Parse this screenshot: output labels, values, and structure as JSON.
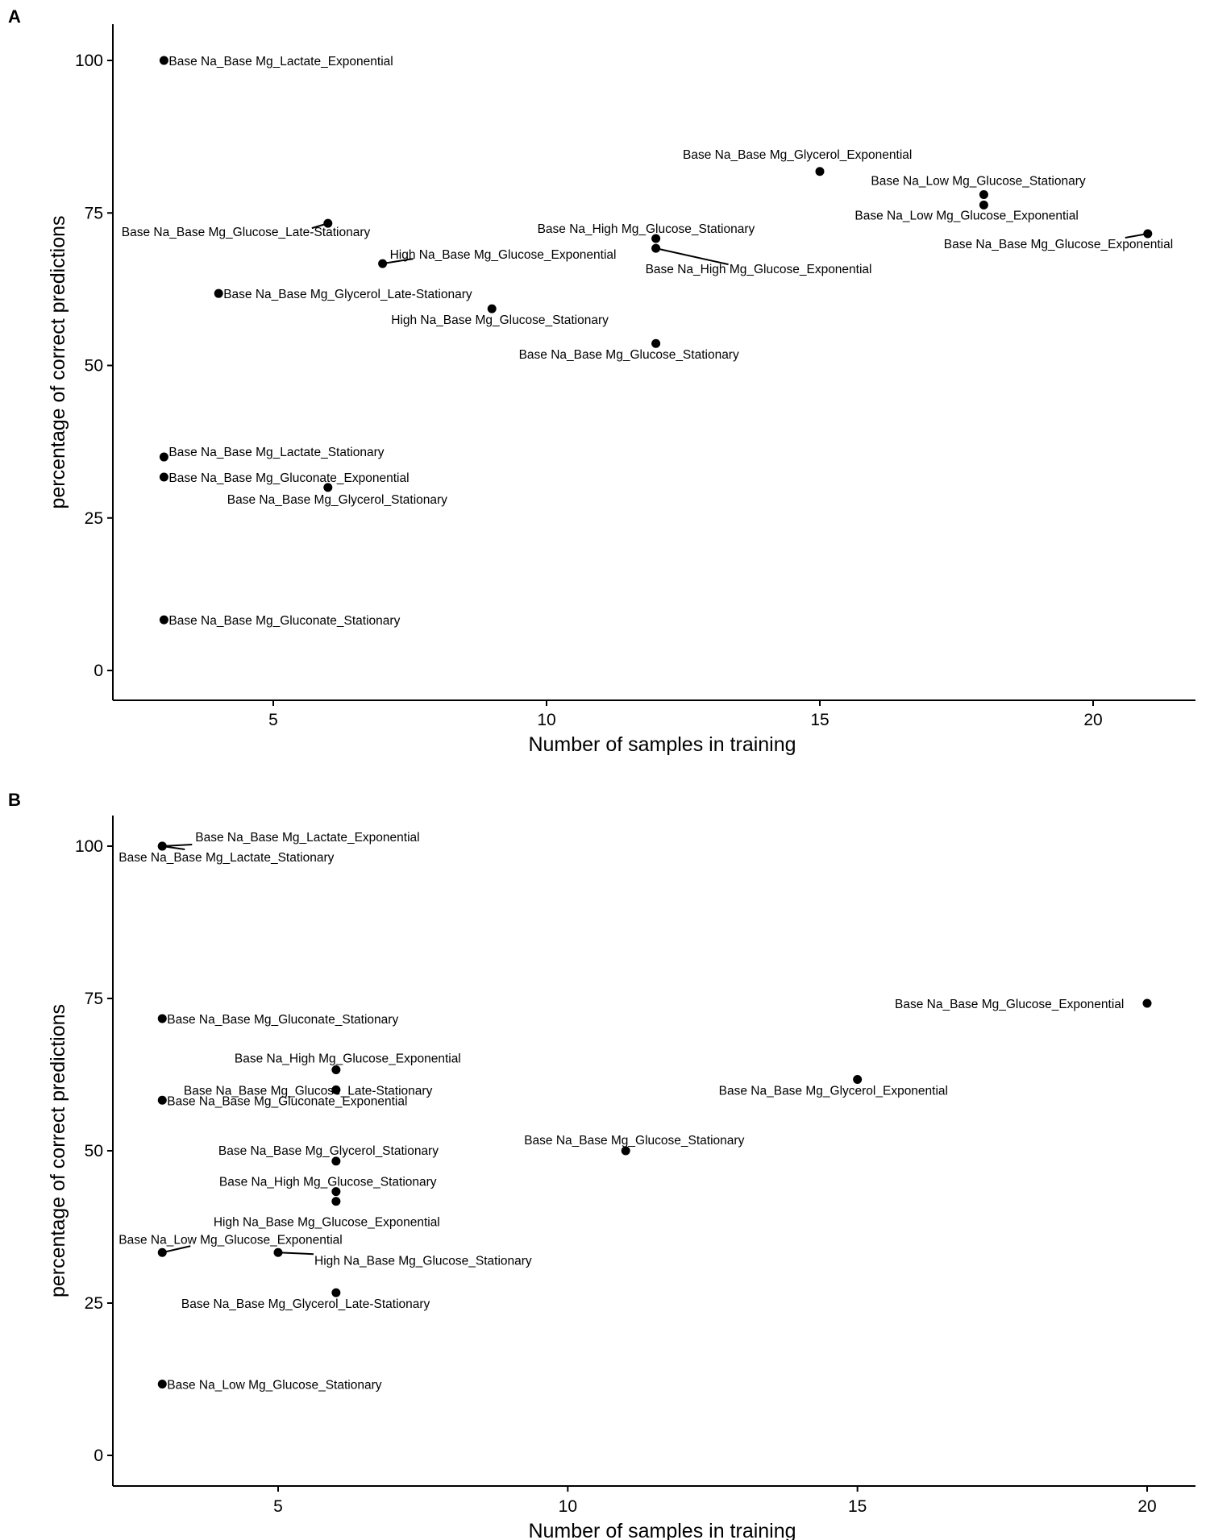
{
  "chart_data": [
    {
      "panel": "A",
      "type": "scatter",
      "xlabel": "Number of samples in training",
      "ylabel": "percentage of correct predictions",
      "xlim": [
        2.2,
        22.0
      ],
      "ylim": [
        -5,
        105
      ],
      "xticks": [
        5,
        10,
        15,
        20
      ],
      "yticks": [
        0,
        25,
        50,
        75,
        100
      ],
      "grid": false,
      "points": [
        {
          "label": "Base Na_Base Mg_Lactate_Exponential",
          "x": 3,
          "y": 100
        },
        {
          "label": "Base Na_Base Mg_Glycerol_Exponential",
          "x": 15,
          "y": 81.8
        },
        {
          "label": "Base Na_Low Mg_Glucose_Stationary",
          "x": 18,
          "y": 78
        },
        {
          "label": "Base Na_Low Mg_Glucose_Exponential",
          "x": 18,
          "y": 76.3
        },
        {
          "label": "Base Na_Base Mg_Glucose_Late-Stationary",
          "x": 6,
          "y": 73.3
        },
        {
          "label": "Base Na_Base Mg_Glucose_Exponential",
          "x": 21,
          "y": 71.6
        },
        {
          "label": "Base Na_High Mg_Glucose_Stationary",
          "x": 12,
          "y": 70.8
        },
        {
          "label": "Base Na_High Mg_Glucose_Exponential",
          "x": 12,
          "y": 69.2
        },
        {
          "label": "High Na_Base Mg_Glucose_Exponential",
          "x": 7,
          "y": 66.7
        },
        {
          "label": "Base Na_Base Mg_Glycerol_Late-Stationary",
          "x": 4,
          "y": 61.8
        },
        {
          "label": "High Na_Base Mg_Glucose_Stationary",
          "x": 9,
          "y": 59.3
        },
        {
          "label": "Base Na_Base Mg_Glucose_Stationary",
          "x": 12,
          "y": 53.6
        },
        {
          "label": "Base Na_Base Mg_Lactate_Stationary",
          "x": 3,
          "y": 35
        },
        {
          "label": "Base Na_Base Mg_Gluconate_Exponential",
          "x": 3,
          "y": 31.7
        },
        {
          "label": "Base Na_Base Mg_Glycerol_Stationary",
          "x": 6,
          "y": 30
        },
        {
          "label": "Base Na_Base Mg_Gluconate_Stationary",
          "x": 3,
          "y": 8.3
        }
      ]
    },
    {
      "panel": "B",
      "type": "scatter",
      "xlabel": "Number of samples in training",
      "ylabel": "percentage of correct predictions",
      "xlim": [
        2.2,
        20.9
      ],
      "ylim": [
        -5,
        105
      ],
      "xticks": [
        5,
        10,
        15,
        20
      ],
      "yticks": [
        0,
        25,
        50,
        75,
        100
      ],
      "grid": false,
      "points": [
        {
          "label": "Base Na_Base Mg_Lactate_Exponential",
          "x": 3,
          "y": 100
        },
        {
          "label": "Base Na_Base Mg_Lactate_Stationary",
          "x": 3,
          "y": 100
        },
        {
          "label": "Base Na_Base Mg_Glucose_Exponential",
          "x": 20,
          "y": 74.2
        },
        {
          "label": "Base Na_Base Mg_Gluconate_Stationary",
          "x": 3,
          "y": 71.7
        },
        {
          "label": "Base Na_High Mg_Glucose_Exponential",
          "x": 6,
          "y": 63.3
        },
        {
          "label": "Base Na_Base Mg_Glycerol_Exponential",
          "x": 15,
          "y": 61.7
        },
        {
          "label": "Base Na_Base Mg_Glucose_Late-Stationary",
          "x": 6,
          "y": 60
        },
        {
          "label": "Base Na_Base Mg_Gluconate_Exponential",
          "x": 3,
          "y": 58.3
        },
        {
          "label": "Base Na_Base Mg_Glucose_Stationary",
          "x": 11,
          "y": 50
        },
        {
          "label": "Base Na_Base Mg_Glycerol_Stationary",
          "x": 6,
          "y": 48.3
        },
        {
          "label": "Base Na_High Mg_Glucose_Stationary",
          "x": 6,
          "y": 43.3
        },
        {
          "label": "High Na_Base Mg_Glucose_Exponential",
          "x": 6,
          "y": 41.7
        },
        {
          "label": "Base Na_Low Mg_Glucose_Exponential",
          "x": 3,
          "y": 33.3
        },
        {
          "label": "High Na_Base Mg_Glucose_Stationary",
          "x": 5,
          "y": 33.3
        },
        {
          "label": "Base Na_Base Mg_Glycerol_Late-Stationary",
          "x": 6,
          "y": 26.7
        },
        {
          "label": "Base Na_Low Mg_Glucose_Stationary",
          "x": 3,
          "y": 11.7
        }
      ]
    }
  ]
}
